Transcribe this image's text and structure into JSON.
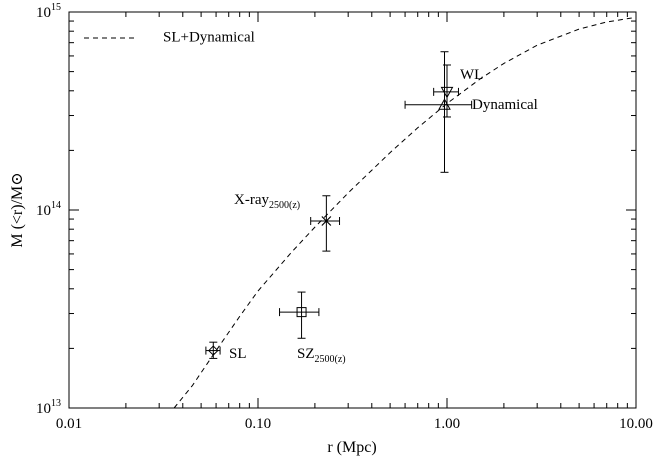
{
  "chart_data": {
    "type": "scatter",
    "xlabel": "r (Mpc)",
    "ylabel": "M (<r)/M⊙",
    "xscale": "log",
    "yscale": "log",
    "xlim": [
      0.01,
      10.0
    ],
    "ylim": [
      10000000000000.0,
      1000000000000000.0
    ],
    "xticks": [
      {
        "value": 0.01,
        "label": "0.01"
      },
      {
        "value": 0.1,
        "label": "0.10"
      },
      {
        "value": 1.0,
        "label": "1.00"
      },
      {
        "value": 10.0,
        "label": "10.00"
      }
    ],
    "yticks": [
      {
        "value": 10000000000000.0,
        "base": "10",
        "exp": "13"
      },
      {
        "value": 100000000000000.0,
        "base": "10",
        "exp": "14"
      },
      {
        "value": 1000000000000000.0,
        "base": "10",
        "exp": "15"
      }
    ],
    "legend": {
      "label": "SL+Dynamical",
      "style": "dashed",
      "position": "top-left"
    },
    "model_curve": {
      "name": "SL+Dynamical",
      "x": [
        0.036,
        0.045,
        0.06,
        0.08,
        0.1,
        0.15,
        0.2,
        0.3,
        0.5,
        0.7,
        1.0,
        1.5,
        2.0,
        3.0,
        5.0,
        7.0,
        10.0
      ],
      "y": [
        10000000000000.0,
        13000000000000.0,
        19500000000000.0,
        29000000000000.0,
        39000000000000.0,
        61000000000000.0,
        82000000000000.0,
        122000000000000.0,
        195000000000000.0,
        260000000000000.0,
        345000000000000.0,
        460000000000000.0,
        550000000000000.0,
        680000000000000.0,
        820000000000000.0,
        890000000000000.0,
        940000000000000.0
      ]
    },
    "points": [
      {
        "label": "SL",
        "sub": "",
        "marker": "diamond",
        "x": 0.058,
        "y": 19500000000000.0,
        "xerr": [
          0.053,
          0.063
        ],
        "yerr": [
          17800000000000.0,
          21500000000000.0
        ]
      },
      {
        "label": "SZ",
        "sub": "2500(z)",
        "marker": "square",
        "x": 0.17,
        "y": 30500000000000.0,
        "xerr": [
          0.13,
          0.21
        ],
        "yerr": [
          22500000000000.0,
          38500000000000.0
        ]
      },
      {
        "label": "X-ray",
        "sub": "2500(z)",
        "marker": "x",
        "x": 0.23,
        "y": 88000000000000.0,
        "xerr": [
          0.19,
          0.27
        ],
        "yerr": [
          62000000000000.0,
          118000000000000.0
        ]
      },
      {
        "label": "WL",
        "sub": "",
        "marker": "triangle-down",
        "x": 1.0,
        "y": 395000000000000.0,
        "xerr": [
          0.85,
          1.15
        ],
        "yerr": [
          295000000000000.0,
          540000000000000.0
        ]
      },
      {
        "label": "Dynamical",
        "sub": "",
        "marker": "triangle",
        "x": 0.97,
        "y": 340000000000000.0,
        "xerr": [
          0.6,
          1.35
        ],
        "yerr": [
          155000000000000.0,
          630000000000000.0
        ]
      }
    ]
  }
}
